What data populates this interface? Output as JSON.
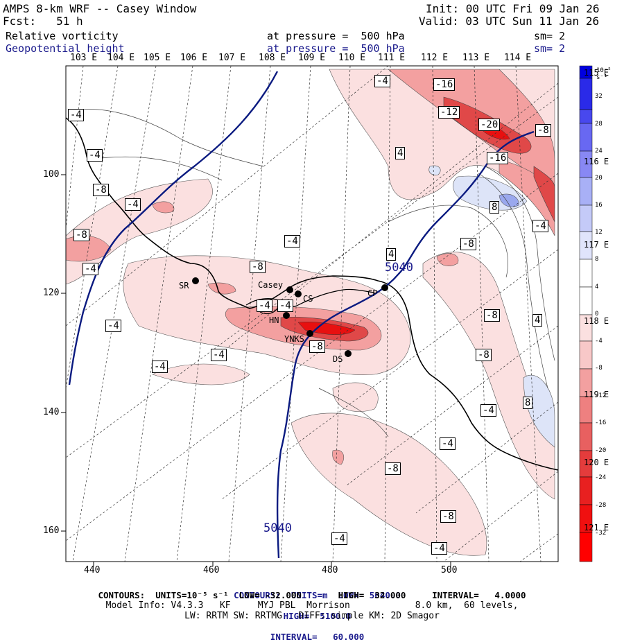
{
  "header": {
    "title": "AMPS 8-km WRF -- Casey Window",
    "init": "Init: 00 UTC Fri 09 Jan 26",
    "fcst": "Fcst:   51 h",
    "valid": "Valid: 03 UTC Sun 11 Jan 26",
    "field1": "Relative vorticity",
    "field1_level": "at pressure =  500 hPa",
    "field1_sm": "sm= 2",
    "field2": "Geopotential height",
    "field2_level": "at pressure =  500 hPa",
    "field2_sm": "sm= 2"
  },
  "top_lon_labels": [
    "103 E",
    "104 E",
    "105 E",
    "106 E",
    "107 E",
    "108 E",
    "109 E",
    "110 E",
    "111 E",
    "112 E",
    "113 E",
    "114 E"
  ],
  "right_lon_labels": [
    "115 E",
    "116 E",
    "117 E",
    "118 E",
    "119 E",
    "120 E",
    "121 E"
  ],
  "y_ticks": [
    "100",
    "120",
    "140",
    "160"
  ],
  "x_ticks": [
    "440",
    "460",
    "480",
    "500"
  ],
  "colorbar": {
    "unit": "10⁻⁵ s⁻¹",
    "labels": [
      "32",
      "28",
      "24",
      "20",
      "16",
      "12",
      "8",
      "4",
      "0",
      "-4",
      "-8",
      "-12",
      "-16",
      "-20",
      "-24",
      "-28",
      "-32"
    ]
  },
  "stations": [
    "Casey",
    "CS",
    "CP",
    "SR",
    "HN",
    "YNKS",
    "DS"
  ],
  "contour_labels": [
    "-4",
    "-16",
    "-12",
    "-20",
    "-8",
    "-16",
    "4",
    "-4",
    "-4",
    "-8",
    "-8",
    "-4",
    "-4",
    "-8",
    "-4",
    "-8",
    "4",
    "5040",
    "-4",
    "-4",
    "-4",
    "-8",
    "-4",
    "-8",
    "-4",
    "-8",
    "-8",
    "-4",
    "-8",
    "-4",
    "-4",
    "8",
    "-4",
    "4",
    "8",
    "-4",
    "5040"
  ],
  "footer": {
    "line1_a": "CONTOURS:  UNITS=m  LOW=  5040.0",
    "line1_b": "HIGH=  5100.0",
    "line1_c": "INTERVAL=   60.000",
    "line2": "CONTOURS:  UNITS=10⁻⁵ s⁻¹  LOW= -32.000       HIGH=  32.000     INTERVAL=   4.0000",
    "line3": "Model Info: V4.3.3   KF     MYJ PBL  Morrison            8.0 km,  60 levels,",
    "line4": "LW: RRTM SW: RRTMG   DIFF: simple KM: 2D Smagor"
  },
  "colors": {
    "height_contour": "#0a1a80",
    "coast": "#000000",
    "neg_light": "#fbe0e0",
    "neg_mid": "#f3a0a0",
    "neg_strong": "#e04848",
    "neg_max": "#e81010",
    "pos_light": "#dde4f8",
    "pos_mid": "#9aa8ee"
  }
}
